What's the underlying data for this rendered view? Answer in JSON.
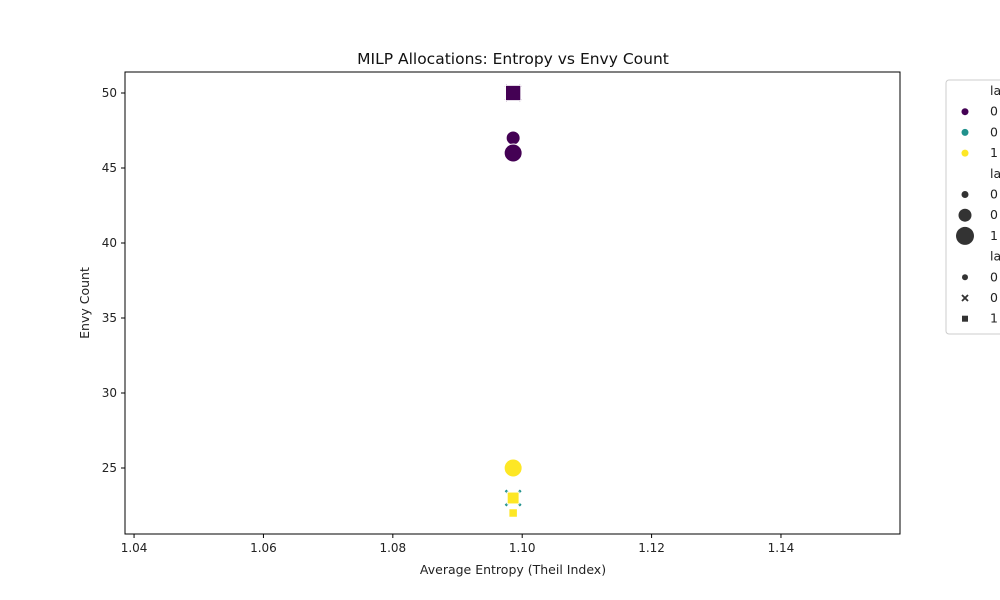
{
  "chart_data": {
    "type": "scatter",
    "title": "MILP Allocations: Entropy vs Envy Count",
    "xlabel": "Average Entropy (Theil Index)",
    "ylabel": "Envy Count",
    "xlim": [
      1.0386,
      1.1584
    ],
    "ylim": [
      20.6,
      51.4
    ],
    "xticks": [
      "1.04",
      "1.06",
      "1.08",
      "1.10",
      "1.12",
      "1.14"
    ],
    "yticks": [
      "25",
      "30",
      "35",
      "40",
      "45",
      "50"
    ],
    "grid": false,
    "legend_placement": "outside-right",
    "legend": {
      "groups": [
        {
          "kind": "hue",
          "title": "la",
          "entries": [
            {
              "label": "0",
              "color": "#440154"
            },
            {
              "label": "0",
              "color": "#21918c"
            },
            {
              "label": "1",
              "color": "#fde725"
            }
          ]
        },
        {
          "kind": "size",
          "title": "la",
          "entries": [
            {
              "label": "0",
              "size": "small"
            },
            {
              "label": "0",
              "size": "medium"
            },
            {
              "label": "1",
              "size": "large"
            }
          ]
        },
        {
          "kind": "style",
          "title": "la",
          "entries": [
            {
              "label": "0",
              "marker": "circle"
            },
            {
              "label": "0",
              "marker": "x"
            },
            {
              "label": "1",
              "marker": "square"
            }
          ]
        }
      ]
    },
    "points": [
      {
        "x": 1.0986,
        "y": 50,
        "color": "#440154",
        "size": "large",
        "marker": "x"
      },
      {
        "x": 1.0986,
        "y": 50,
        "color": "#440154",
        "size": "large",
        "marker": "square"
      },
      {
        "x": 1.0986,
        "y": 47,
        "color": "#440154",
        "size": "medium",
        "marker": "circle"
      },
      {
        "x": 1.0986,
        "y": 46,
        "color": "#440154",
        "size": "large",
        "marker": "circle"
      },
      {
        "x": 1.0986,
        "y": 25,
        "color": "#fde725",
        "size": "large",
        "marker": "circle"
      },
      {
        "x": 1.0986,
        "y": 23,
        "color": "#21918c",
        "size": "large",
        "marker": "x"
      },
      {
        "x": 1.0986,
        "y": 23,
        "color": "#fde725",
        "size": "medium",
        "marker": "square"
      },
      {
        "x": 1.0986,
        "y": 22,
        "color": "#fde725",
        "size": "small",
        "marker": "square"
      }
    ]
  }
}
